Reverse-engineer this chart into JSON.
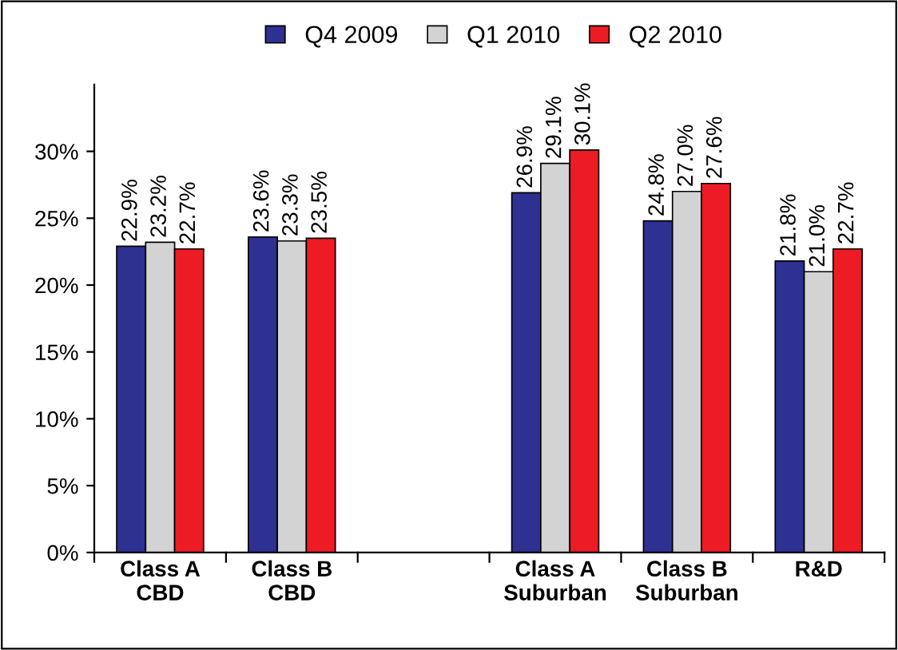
{
  "chart_data": {
    "type": "bar",
    "categories": [
      "Class A\nCBD",
      "Class B\nCBD",
      null,
      "Class A\nSuburban",
      "Class B\nSuburban",
      "R&D"
    ],
    "series": [
      {
        "name": "Q4 2009",
        "color": "#2e3192",
        "values": [
          22.9,
          23.6,
          null,
          26.9,
          24.8,
          21.8
        ],
        "value_labels": [
          "22.9%",
          "23.6%",
          null,
          "26.9%",
          "24.8%",
          "21.8%"
        ]
      },
      {
        "name": "Q1 2010",
        "color": "#d3d3d3",
        "values": [
          23.2,
          23.3,
          null,
          29.1,
          27.0,
          21.0
        ],
        "value_labels": [
          "23.2%",
          "23.3%",
          null,
          "29.1%",
          "27.0%",
          "21.0%"
        ]
      },
      {
        "name": "Q2 2010",
        "color": "#ed1c24",
        "values": [
          22.7,
          23.5,
          null,
          30.1,
          27.6,
          22.7
        ],
        "value_labels": [
          "22.7%",
          "23.5%",
          null,
          "30.1%",
          "27.6%",
          "22.7%"
        ]
      }
    ],
    "ylim": [
      0,
      35
    ],
    "yticks": [
      {
        "value": 0,
        "label": "0%"
      },
      {
        "value": 5,
        "label": "5%"
      },
      {
        "value": 10,
        "label": "10%"
      },
      {
        "value": 15,
        "label": "15%"
      },
      {
        "value": 20,
        "label": "20%"
      },
      {
        "value": 25,
        "label": "25%"
      },
      {
        "value": 30,
        "label": "30%"
      }
    ],
    "grid": false,
    "legend": "top"
  }
}
